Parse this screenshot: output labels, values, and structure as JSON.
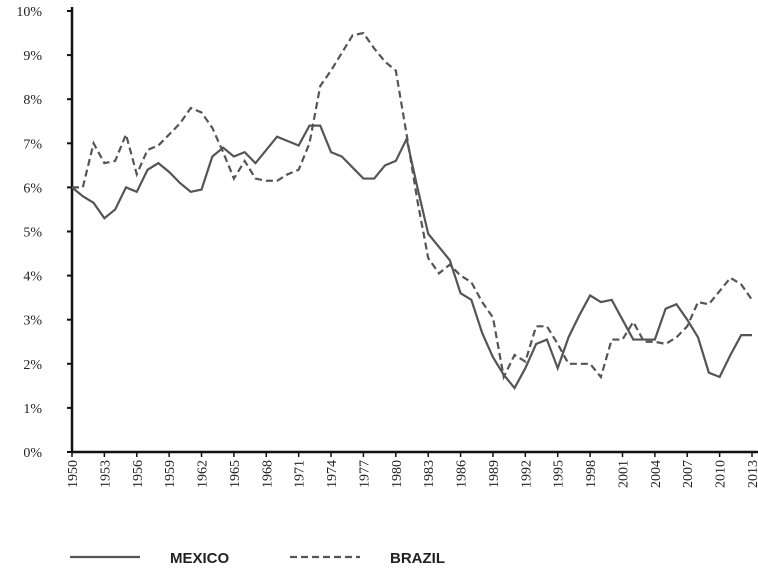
{
  "chart_data": {
    "type": "line",
    "x": [
      1950,
      1951,
      1952,
      1953,
      1954,
      1955,
      1956,
      1957,
      1958,
      1959,
      1960,
      1961,
      1962,
      1963,
      1964,
      1965,
      1966,
      1967,
      1968,
      1969,
      1970,
      1971,
      1972,
      1973,
      1974,
      1975,
      1976,
      1977,
      1978,
      1979,
      1980,
      1981,
      1982,
      1983,
      1984,
      1985,
      1986,
      1987,
      1988,
      1989,
      1990,
      1991,
      1992,
      1993,
      1994,
      1995,
      1996,
      1997,
      1998,
      1999,
      2000,
      2001,
      2002,
      2003,
      2004,
      2005,
      2006,
      2007,
      2008,
      2009,
      2010,
      2011,
      2012,
      2013
    ],
    "series": [
      {
        "name": "MEXICO",
        "color": "#555555",
        "dash": false,
        "values": [
          6.0,
          5.8,
          5.65,
          5.3,
          5.5,
          6.0,
          5.9,
          6.4,
          6.55,
          6.35,
          6.1,
          5.9,
          5.95,
          6.7,
          6.9,
          6.7,
          6.8,
          6.55,
          6.85,
          7.15,
          7.05,
          6.95,
          7.4,
          7.4,
          6.8,
          6.7,
          6.45,
          6.2,
          6.2,
          6.5,
          6.6,
          7.1,
          6.0,
          4.95,
          4.65,
          4.35,
          3.6,
          3.45,
          2.7,
          2.15,
          1.75,
          1.45,
          1.9,
          2.45,
          2.55,
          1.9,
          2.6,
          3.1,
          3.55,
          3.4,
          3.45,
          3.0,
          2.55,
          2.55,
          2.55,
          3.25,
          3.35,
          3.0,
          2.6,
          1.8,
          1.7,
          2.2,
          2.65,
          2.65
        ]
      },
      {
        "name": "BRAZIL",
        "color": "#555555",
        "dash": true,
        "values": [
          6.0,
          6.0,
          7.0,
          6.55,
          6.6,
          7.2,
          6.3,
          6.85,
          6.95,
          7.2,
          7.45,
          7.8,
          7.7,
          7.35,
          6.8,
          6.2,
          6.6,
          6.2,
          6.15,
          6.15,
          6.3,
          6.4,
          7.0,
          8.3,
          8.65,
          9.05,
          9.45,
          9.5,
          9.15,
          8.85,
          8.65,
          7.2,
          5.7,
          4.4,
          4.05,
          4.25,
          4.0,
          3.85,
          3.4,
          3.05,
          1.7,
          2.2,
          2.05,
          2.85,
          2.85,
          2.45,
          2.0,
          2.0,
          2.0,
          1.7,
          2.55,
          2.55,
          2.95,
          2.5,
          2.5,
          2.45,
          2.6,
          2.85,
          3.4,
          3.35,
          3.65,
          3.95,
          3.8,
          3.45
        ]
      }
    ],
    "xlim": [
      1950,
      2013
    ],
    "xticks": [
      1950,
      1953,
      1956,
      1959,
      1962,
      1965,
      1968,
      1971,
      1974,
      1977,
      1980,
      1983,
      1986,
      1989,
      1992,
      1995,
      1998,
      2001,
      2004,
      2007,
      2010,
      2013
    ],
    "ylim": [
      0,
      10
    ],
    "yticks": [
      {
        "value": 0,
        "label": "0%"
      },
      {
        "value": 1,
        "label": "1%"
      },
      {
        "value": 2,
        "label": "2%"
      },
      {
        "value": 3,
        "label": "3%"
      },
      {
        "value": 4,
        "label": "4%"
      },
      {
        "value": 5,
        "label": "5%"
      },
      {
        "value": 6,
        "label": "6%"
      },
      {
        "value": 7,
        "label": "7%"
      },
      {
        "value": 8,
        "label": "8%"
      },
      {
        "value": 9,
        "label": "9%"
      },
      {
        "value": 10,
        "label": "10%"
      }
    ],
    "grid": false,
    "legend": "bottom"
  }
}
